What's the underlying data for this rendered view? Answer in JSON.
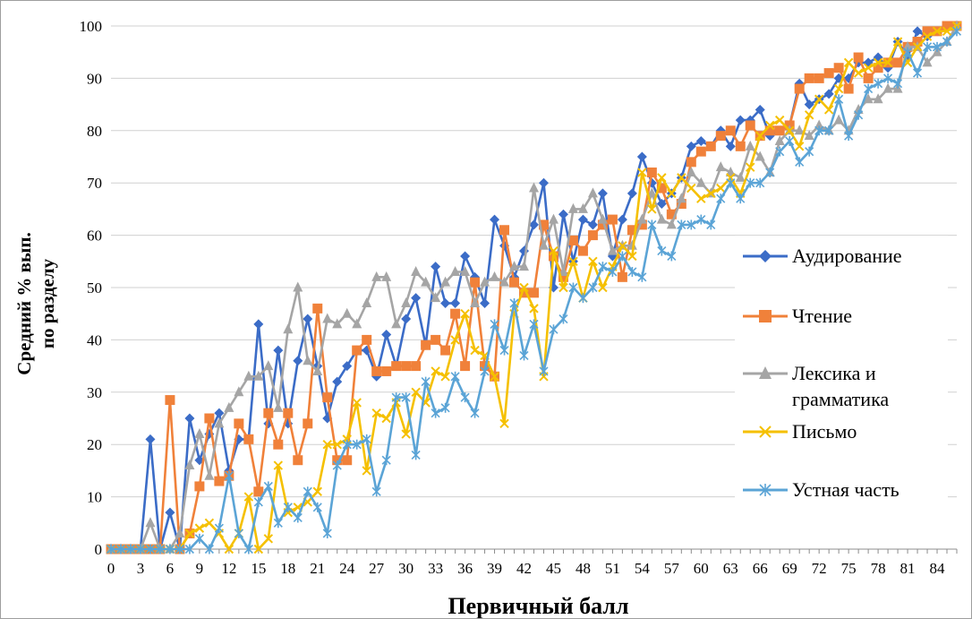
{
  "chart_data": {
    "type": "line",
    "xlabel": "Первичный балл",
    "ylabel_lines": [
      "Средний % вып.",
      "по разделу"
    ],
    "xlim": [
      0,
      86
    ],
    "ylim": [
      0,
      100
    ],
    "x_ticks": [
      "0",
      "3",
      "6",
      "9",
      "12",
      "15",
      "18",
      "21",
      "24",
      "27",
      "30",
      "33",
      "36",
      "39",
      "42",
      "45",
      "48",
      "51",
      "54",
      "57",
      "60",
      "63",
      "66",
      "69",
      "72",
      "75",
      "78",
      "81",
      "84"
    ],
    "y_ticks": [
      "0",
      "10",
      "20",
      "30",
      "40",
      "50",
      "60",
      "70",
      "80",
      "90",
      "100"
    ],
    "grid": "horizontal",
    "legend_position": "right",
    "series": [
      {
        "name": "Аудирование",
        "color": "#3b6cc7",
        "marker": "diamond",
        "values": [
          0,
          0,
          0,
          0,
          21,
          0,
          7,
          0,
          25,
          17,
          22,
          26,
          15,
          21,
          21,
          43,
          24,
          38,
          24,
          36,
          44,
          35,
          25,
          32,
          35,
          38,
          38,
          33,
          41,
          35,
          44,
          48,
          39,
          54,
          47,
          47,
          56,
          52,
          47,
          63,
          58,
          52,
          57,
          62,
          70,
          50,
          64,
          55,
          63,
          62,
          68,
          56,
          63,
          68,
          75,
          70,
          66,
          68,
          71,
          77,
          78,
          77,
          80,
          77,
          82,
          82,
          84,
          79,
          80,
          81,
          89,
          85,
          86,
          87,
          90,
          90,
          93,
          93,
          94,
          92,
          97,
          94,
          99,
          98,
          99,
          100,
          100
        ]
      },
      {
        "name": "Чтение",
        "color": "#f0813a",
        "marker": "square",
        "values": [
          0,
          0,
          0,
          0,
          0,
          0,
          28.5,
          0,
          3,
          12,
          25,
          13,
          14,
          24,
          21,
          11,
          26,
          20,
          26,
          17,
          24,
          46,
          29,
          17,
          17,
          38,
          40,
          34,
          34,
          35,
          35,
          35,
          39,
          40,
          38,
          45,
          35,
          51,
          35,
          33,
          61,
          51,
          49,
          49,
          62,
          56,
          52,
          59,
          57,
          60,
          62,
          63,
          52,
          61,
          62,
          72,
          69,
          64,
          66,
          74,
          76,
          77,
          79,
          80,
          77,
          81,
          79,
          80,
          80,
          81,
          88,
          90,
          90,
          91,
          92,
          88,
          94,
          90,
          92,
          93,
          93,
          96,
          97,
          99,
          99,
          100,
          100
        ]
      },
      {
        "name": "Лексика и грамматика",
        "color": "#a5a5a5",
        "marker": "triangle",
        "values": [
          0,
          0,
          0,
          0,
          5,
          0,
          0,
          3,
          16,
          22,
          14,
          24,
          27,
          30,
          33,
          33,
          35,
          27,
          42,
          50,
          36,
          34,
          44,
          43,
          45,
          43,
          47,
          52,
          52,
          43,
          47,
          53,
          51,
          48,
          51,
          53,
          53,
          47,
          51,
          52,
          51,
          54,
          54,
          69,
          58,
          63,
          53,
          65,
          65,
          68,
          63,
          57,
          58,
          58,
          63,
          68,
          63,
          62,
          67,
          72,
          70,
          68,
          73,
          72,
          71,
          77,
          75,
          72,
          78,
          80,
          80,
          79,
          81,
          80,
          82,
          80,
          84,
          86,
          86,
          88,
          88,
          96,
          96,
          93,
          95,
          97,
          100
        ]
      },
      {
        "name": "Письмо",
        "color": "#f5c000",
        "marker": "x",
        "values": [
          0,
          0,
          0,
          0,
          0,
          0,
          0,
          0,
          3,
          4,
          5,
          3,
          0,
          3,
          10,
          0,
          2,
          16,
          7,
          8,
          9,
          11,
          20,
          20,
          21,
          28,
          15,
          26,
          25,
          28,
          22,
          30,
          28,
          34,
          33,
          40,
          45,
          38,
          37,
          33,
          24,
          45,
          50,
          46,
          33,
          57,
          50,
          55,
          48,
          55,
          50,
          54,
          58,
          56,
          72,
          65,
          71,
          68,
          71,
          69,
          67,
          68,
          69,
          71,
          68,
          73,
          79,
          81,
          82,
          80,
          77,
          83,
          86,
          84,
          88,
          93,
          91,
          92,
          93,
          93,
          97,
          93,
          96,
          98,
          99,
          99,
          100
        ]
      },
      {
        "name": "Устная часть",
        "color": "#5ba4d6",
        "marker": "star",
        "values": [
          0,
          0,
          0,
          0,
          0,
          0,
          0,
          0,
          0,
          2,
          0,
          4,
          14,
          3,
          0,
          9,
          12,
          5,
          8,
          6,
          11,
          8,
          3,
          16,
          20,
          20,
          21,
          11,
          17,
          29,
          29,
          18,
          32,
          26,
          27,
          33,
          29,
          26,
          34,
          43,
          38,
          47,
          37,
          43,
          34,
          42,
          44,
          50,
          48,
          50,
          54,
          53,
          56,
          53,
          52,
          62,
          57,
          56,
          62,
          62,
          63,
          62,
          67,
          70,
          67,
          70,
          70,
          72,
          76,
          78,
          74,
          76,
          80,
          80,
          86,
          79,
          83,
          88,
          89,
          90,
          89,
          95,
          91,
          96,
          96,
          97,
          99
        ]
      }
    ]
  }
}
